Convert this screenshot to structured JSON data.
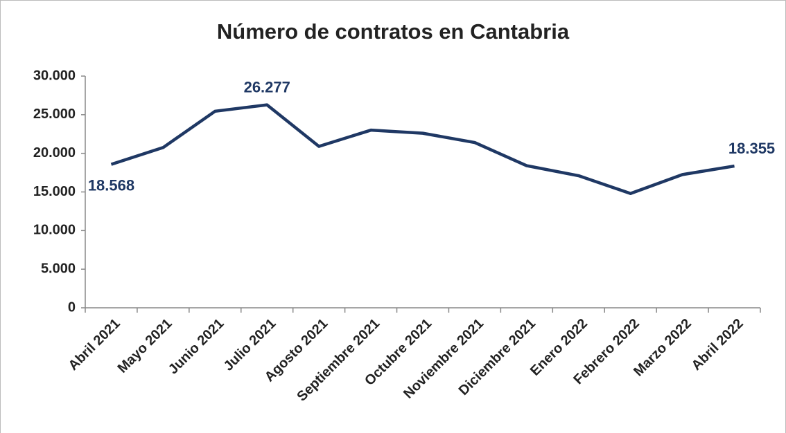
{
  "chart_data": {
    "type": "line",
    "title": "Número de contratos en Cantabria",
    "categories": [
      "Abril 2021",
      "Mayo 2021",
      "Junio 2021",
      "Julio 2021",
      "Agosto 2021",
      "Septiembre 2021",
      "Octubre 2021",
      "Noviembre 2021",
      "Diciembre 2021",
      "Enero 2022",
      "Febrero 2022",
      "Marzo 2022",
      "Abril 2022"
    ],
    "series": [
      {
        "name": "Contratos",
        "color": "#1f3864",
        "values": [
          18568,
          20750,
          25450,
          26277,
          20900,
          23000,
          22600,
          21400,
          18400,
          17100,
          14800,
          17250,
          18355
        ],
        "value_labels": [
          "18.568",
          null,
          null,
          "26.277",
          null,
          null,
          null,
          null,
          null,
          null,
          null,
          null,
          "18.355"
        ]
      }
    ],
    "ylim": [
      0,
      30000
    ],
    "yticks": [
      0,
      {
        "value": 5000,
        "label": "5.000"
      },
      {
        "value": 10000,
        "label": "10.000"
      },
      {
        "value": 15000,
        "label": "15.000"
      },
      {
        "value": 20000,
        "label": "20.000"
      },
      {
        "value": 25000,
        "label": "25.000"
      },
      {
        "value": 30000,
        "label": "30.000"
      }
    ],
    "grid": false
  }
}
